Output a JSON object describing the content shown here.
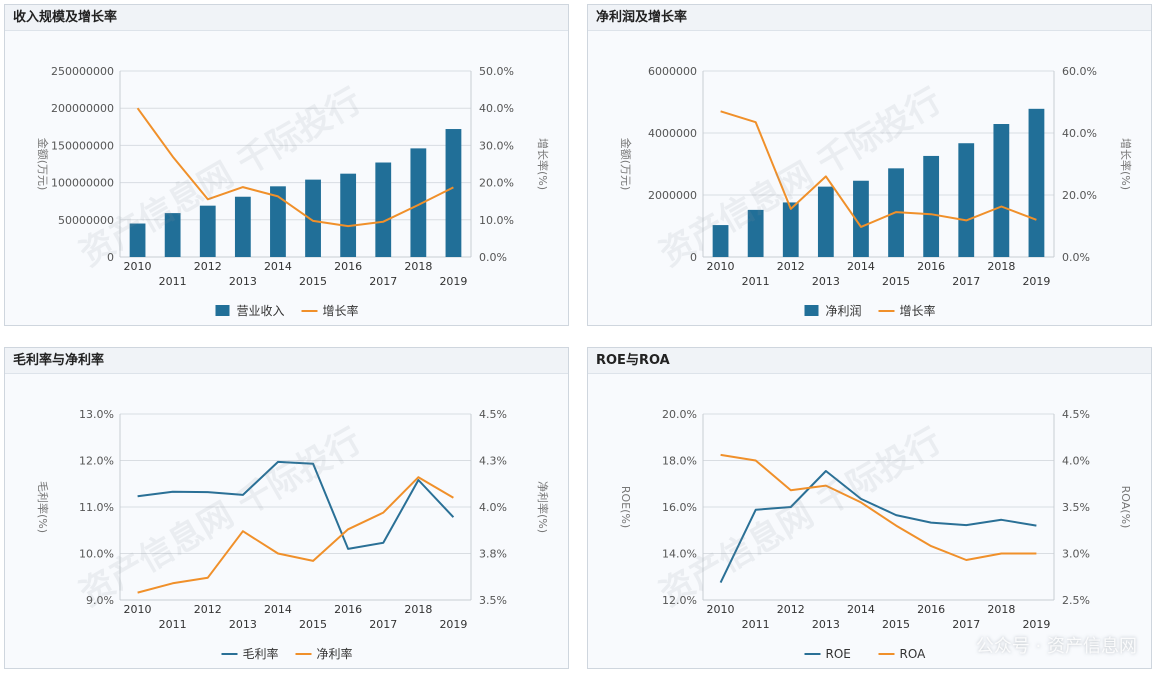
{
  "colors": {
    "bar": "#216f98",
    "line1": "#2a7096",
    "line2": "#f0902a",
    "grid": "#d9dde2",
    "text": "#555555"
  },
  "watermarks": [
    "资产信息网 千际投行",
    "资产信息网 千际投行",
    "资产信息网 千际投行",
    "资产信息网 千际投行"
  ],
  "footer_brand": "公众号 · 资产信息网",
  "chart_data": [
    {
      "id": "p1",
      "type": "bar+line",
      "title": "收入规模及增长率",
      "categories": [
        "2010",
        "2011",
        "2012",
        "2013",
        "2014",
        "2015",
        "2016",
        "2017",
        "2018",
        "2019"
      ],
      "ylabel_left": "金额(万元)",
      "ylabel_right": "增长率(%)",
      "ylim_left": [
        0,
        250000000
      ],
      "yticks_left": [
        "0",
        "50000000",
        "100000000",
        "150000000",
        "200000000",
        "250000000"
      ],
      "ylim_right": [
        0,
        50
      ],
      "yticks_right": [
        "0.0%",
        "10.0%",
        "20.0%",
        "30.0%",
        "40.0%",
        "50.0%"
      ],
      "bars": {
        "name": "营业收入",
        "values": [
          45000000,
          59000000,
          69000000,
          81000000,
          95000000,
          104000000,
          112000000,
          127000000,
          146000000,
          172000000
        ]
      },
      "lines": [
        {
          "name": "增长率",
          "axis": "right",
          "color": "line2",
          "values": [
            40.0,
            27.0,
            15.5,
            18.8,
            16.3,
            9.7,
            8.3,
            9.5,
            14.0,
            18.7
          ]
        }
      ]
    },
    {
      "id": "p2",
      "type": "bar+line",
      "title": "净利润及增长率",
      "categories": [
        "2010",
        "2011",
        "2012",
        "2013",
        "2014",
        "2015",
        "2016",
        "2017",
        "2018",
        "2019"
      ],
      "ylabel_left": "金额(万元)",
      "ylabel_right": "增长率(%)",
      "ylim_left": [
        0,
        6000000
      ],
      "yticks_left": [
        "0",
        "2000000",
        "4000000",
        "6000000"
      ],
      "ylim_right": [
        0,
        60
      ],
      "yticks_right": [
        "0.0%",
        "20.0%",
        "40.0%",
        "60.0%"
      ],
      "bars": {
        "name": "净利润",
        "values": [
          1030000,
          1520000,
          1760000,
          2270000,
          2460000,
          2860000,
          3260000,
          3670000,
          4290000,
          4780000
        ]
      },
      "lines": [
        {
          "name": "增长率",
          "axis": "right",
          "color": "line2",
          "values": [
            47.0,
            43.5,
            15.5,
            26.0,
            9.7,
            14.5,
            13.8,
            11.8,
            16.3,
            12.0
          ]
        }
      ]
    },
    {
      "id": "p3",
      "type": "line",
      "title": "毛利率与净利率",
      "categories": [
        "2010",
        "2011",
        "2012",
        "2013",
        "2014",
        "2015",
        "2016",
        "2017",
        "2018",
        "2019"
      ],
      "ylabel_left": "毛利率(%)",
      "ylabel_right": "净利率(%)",
      "ylim_left": [
        9,
        13
      ],
      "yticks_left": [
        "9.0%",
        "10.0%",
        "11.0%",
        "12.0%",
        "13.0%"
      ],
      "ylim_right": [
        3.5,
        4.5
      ],
      "yticks_right": [
        "3.5%",
        "3.8%",
        "4.0%",
        "4.3%",
        "4.5%"
      ],
      "lines": [
        {
          "name": "毛利率",
          "axis": "left",
          "color": "line1",
          "values": [
            11.23,
            11.33,
            11.32,
            11.26,
            11.97,
            11.93,
            10.1,
            10.23,
            11.58,
            10.78
          ]
        },
        {
          "name": "净利率",
          "axis": "right",
          "color": "line2",
          "values": [
            3.54,
            3.59,
            3.62,
            3.87,
            3.75,
            3.71,
            3.88,
            3.97,
            4.16,
            4.05
          ]
        }
      ]
    },
    {
      "id": "p4",
      "type": "line",
      "title": "ROE与ROA",
      "categories": [
        "2010",
        "2011",
        "2012",
        "2013",
        "2014",
        "2015",
        "2016",
        "2017",
        "2018",
        "2019"
      ],
      "ylabel_left": "ROE(%)",
      "ylabel_right": "ROA(%)",
      "ylim_left": [
        12,
        20
      ],
      "yticks_left": [
        "12.0%",
        "14.0%",
        "16.0%",
        "18.0%",
        "20.0%"
      ],
      "ylim_right": [
        2.5,
        4.5
      ],
      "yticks_right": [
        "2.5%",
        "3.0%",
        "3.5%",
        "4.0%",
        "4.5%"
      ],
      "lines": [
        {
          "name": "ROE",
          "axis": "left",
          "color": "line1",
          "values": [
            12.75,
            15.88,
            16.0,
            17.55,
            16.35,
            15.65,
            15.33,
            15.22,
            15.45,
            15.2
          ]
        },
        {
          "name": "ROA",
          "axis": "right",
          "color": "line2",
          "values": [
            4.06,
            4.0,
            3.68,
            3.73,
            3.55,
            3.3,
            3.08,
            2.93,
            3.0,
            3.0
          ]
        }
      ]
    }
  ]
}
